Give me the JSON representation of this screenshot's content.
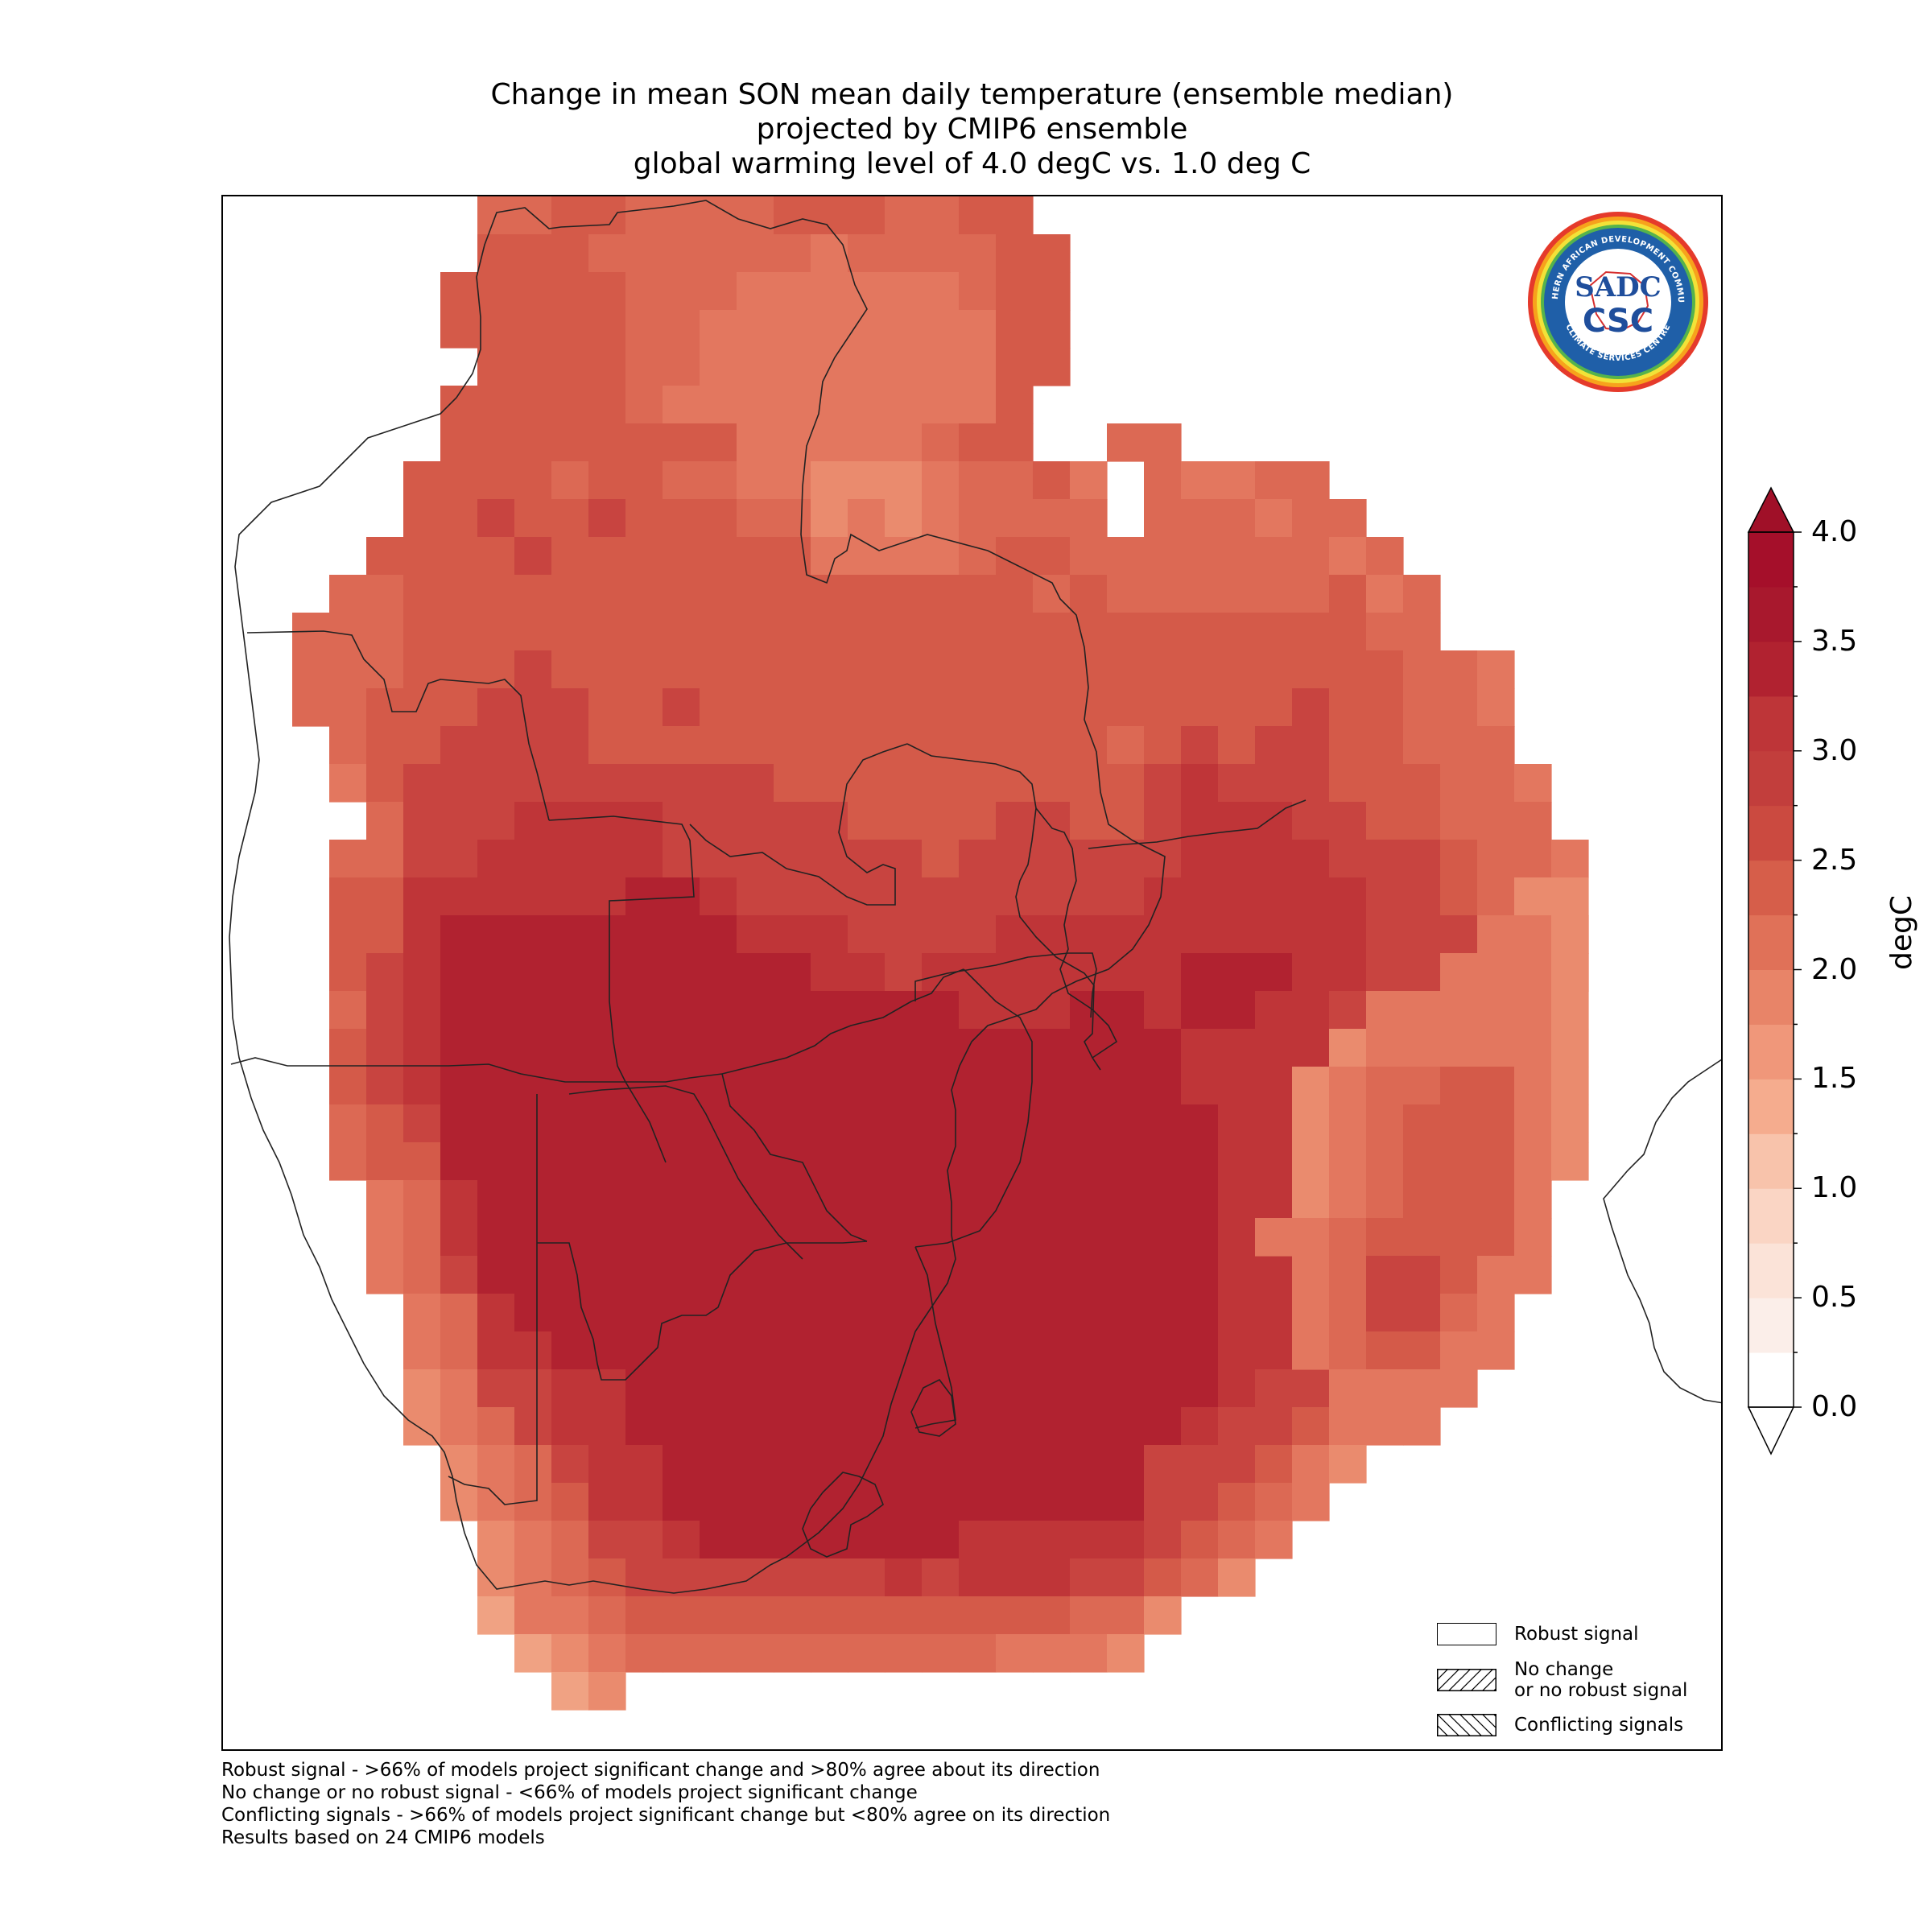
{
  "title": {
    "line1": "Change in mean SON mean daily temperature (ensemble median)",
    "line2": "projected by CMIP6 ensemble",
    "line3": "global warming level of 4.0 degC vs. 1.0 deg C"
  },
  "logo": {
    "top_text": "SOUTHERN AFRICAN DEVELOPMENT COMMUNITY",
    "bottom_text": "CLIMATE SERVICES CENTRE",
    "mark": "SADC",
    "subtitle": "CSC"
  },
  "legend": {
    "items": [
      {
        "label": "Robust signal",
        "hatch": "none"
      },
      {
        "label_line1": "No change",
        "label_line2": "or no robust signal",
        "hatch": "diagonal"
      },
      {
        "label": "Conflicting signals",
        "hatch": "back-diagonal"
      }
    ]
  },
  "colorbar": {
    "unit": "degC",
    "ticks": [
      "0.0",
      "0.5",
      "1.0",
      "1.5",
      "2.0",
      "2.5",
      "3.0",
      "3.5",
      "4.0"
    ],
    "min": 0.0,
    "max": 4.0,
    "extend": "both",
    "colors": [
      "#fbeee9",
      "#fbe3d8",
      "#fad5c4",
      "#f8c3ab",
      "#f5ac8e",
      "#f0977a",
      "#e88468",
      "#e07158",
      "#d65e4a",
      "#cb4a40",
      "#be3538",
      "#b12230",
      "#a50f2a",
      "#ffffff",
      "#a01028"
    ]
  },
  "footnotes": [
    "Robust signal - >66% of models project significant change and >80% agree about its direction",
    "No change or no robust signal - <66% of models project significant change",
    "Conflicting signals - >66% of models project significant change but <80% agree on its direction",
    "Results based on 24 CMIP6 models"
  ]
}
